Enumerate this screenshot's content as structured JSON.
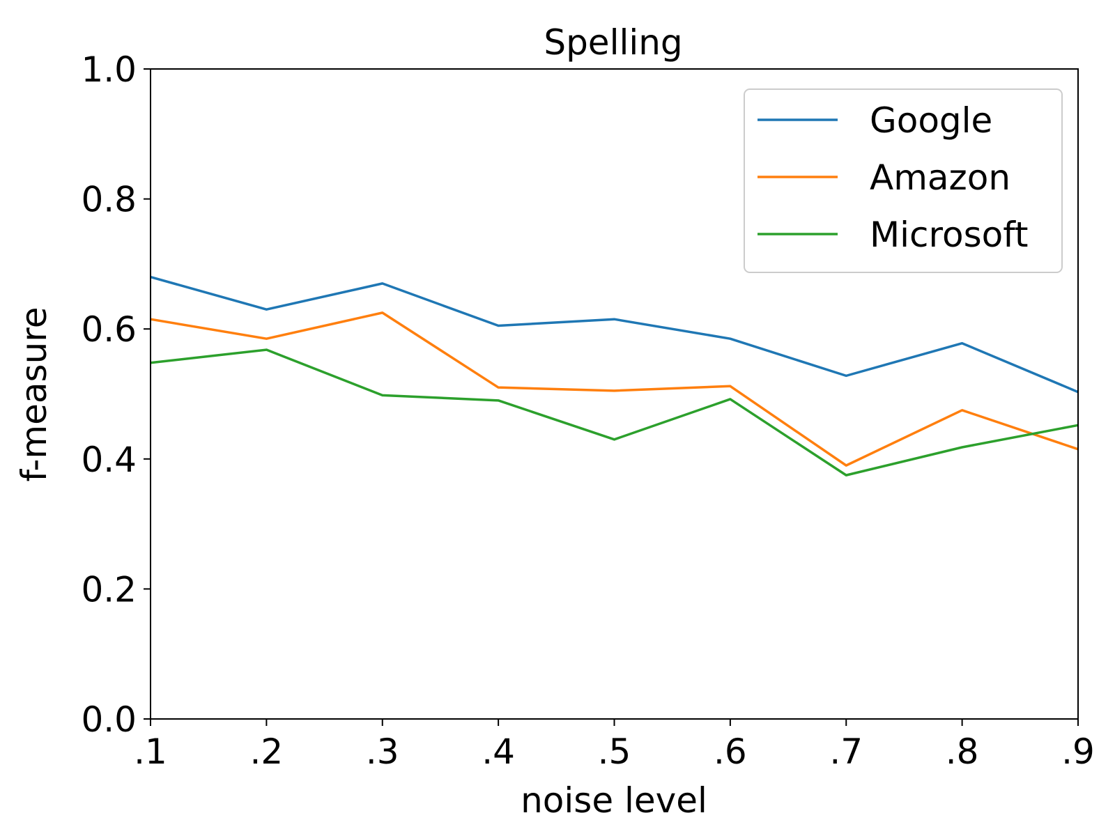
{
  "chart_data": {
    "type": "line",
    "title": "Spelling",
    "xlabel": "noise level",
    "ylabel": "f-measure",
    "x": [
      ".1",
      ".2",
      ".3",
      ".4",
      ".5",
      ".6",
      ".7",
      ".8",
      ".9"
    ],
    "ylim": [
      0.0,
      1.0
    ],
    "yticks": [
      "0.0",
      "0.2",
      "0.4",
      "0.6",
      "0.8",
      "1.0"
    ],
    "grid": false,
    "legend_position": "upper-right",
    "series": [
      {
        "name": "Google",
        "color": "#1f77b4",
        "values": [
          0.68,
          0.63,
          0.67,
          0.605,
          0.615,
          0.585,
          0.528,
          0.578,
          0.503
        ]
      },
      {
        "name": "Amazon",
        "color": "#ff7f0e",
        "values": [
          0.615,
          0.585,
          0.625,
          0.51,
          0.505,
          0.512,
          0.39,
          0.475,
          0.415
        ]
      },
      {
        "name": "Microsoft",
        "color": "#2ca02c",
        "values": [
          0.548,
          0.568,
          0.498,
          0.49,
          0.43,
          0.492,
          0.375,
          0.418,
          0.452
        ]
      }
    ]
  }
}
